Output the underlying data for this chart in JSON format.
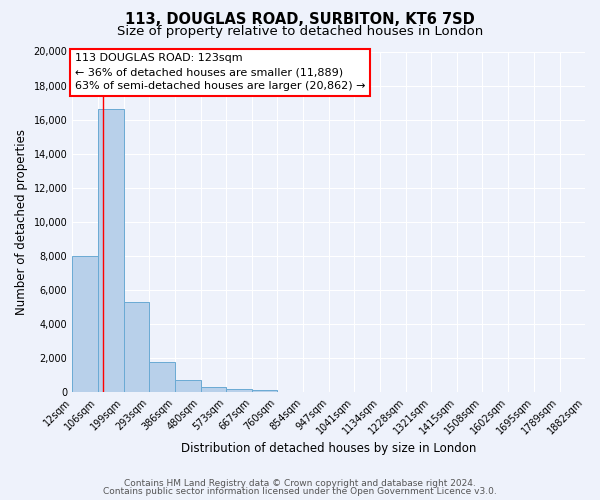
{
  "title": "113, DOUGLAS ROAD, SURBITON, KT6 7SD",
  "subtitle": "Size of property relative to detached houses in London",
  "xlabel": "Distribution of detached houses by size in London",
  "ylabel": "Number of detached properties",
  "bin_edges": [
    12,
    106,
    199,
    293,
    386,
    480,
    573,
    667,
    760,
    854,
    947,
    1041,
    1134,
    1228,
    1321,
    1415,
    1508,
    1602,
    1695,
    1789,
    1882
  ],
  "bar_heights": [
    8000,
    16600,
    5300,
    1800,
    750,
    300,
    200,
    150,
    0,
    0,
    0,
    0,
    0,
    0,
    0,
    0,
    0,
    0,
    0,
    0
  ],
  "bar_color": "#b8d0ea",
  "bar_edge_color": "#6aaad4",
  "red_line_x": 123,
  "annotation_line1": "113 DOUGLAS ROAD: 123sqm",
  "annotation_line2": "← 36% of detached houses are smaller (11,889)",
  "annotation_line3": "63% of semi-detached houses are larger (20,862) →",
  "ylim": [
    0,
    20000
  ],
  "yticks": [
    0,
    2000,
    4000,
    6000,
    8000,
    10000,
    12000,
    14000,
    16000,
    18000,
    20000
  ],
  "footer_line1": "Contains HM Land Registry data © Crown copyright and database right 2024.",
  "footer_line2": "Contains public sector information licensed under the Open Government Licence v3.0.",
  "bg_color": "#eef2fb",
  "plot_bg_color": "#eef2fb",
  "grid_color": "#ffffff",
  "title_fontsize": 10.5,
  "subtitle_fontsize": 9.5,
  "axis_label_fontsize": 8.5,
  "tick_fontsize": 7,
  "annotation_fontsize": 8,
  "footer_fontsize": 6.5
}
